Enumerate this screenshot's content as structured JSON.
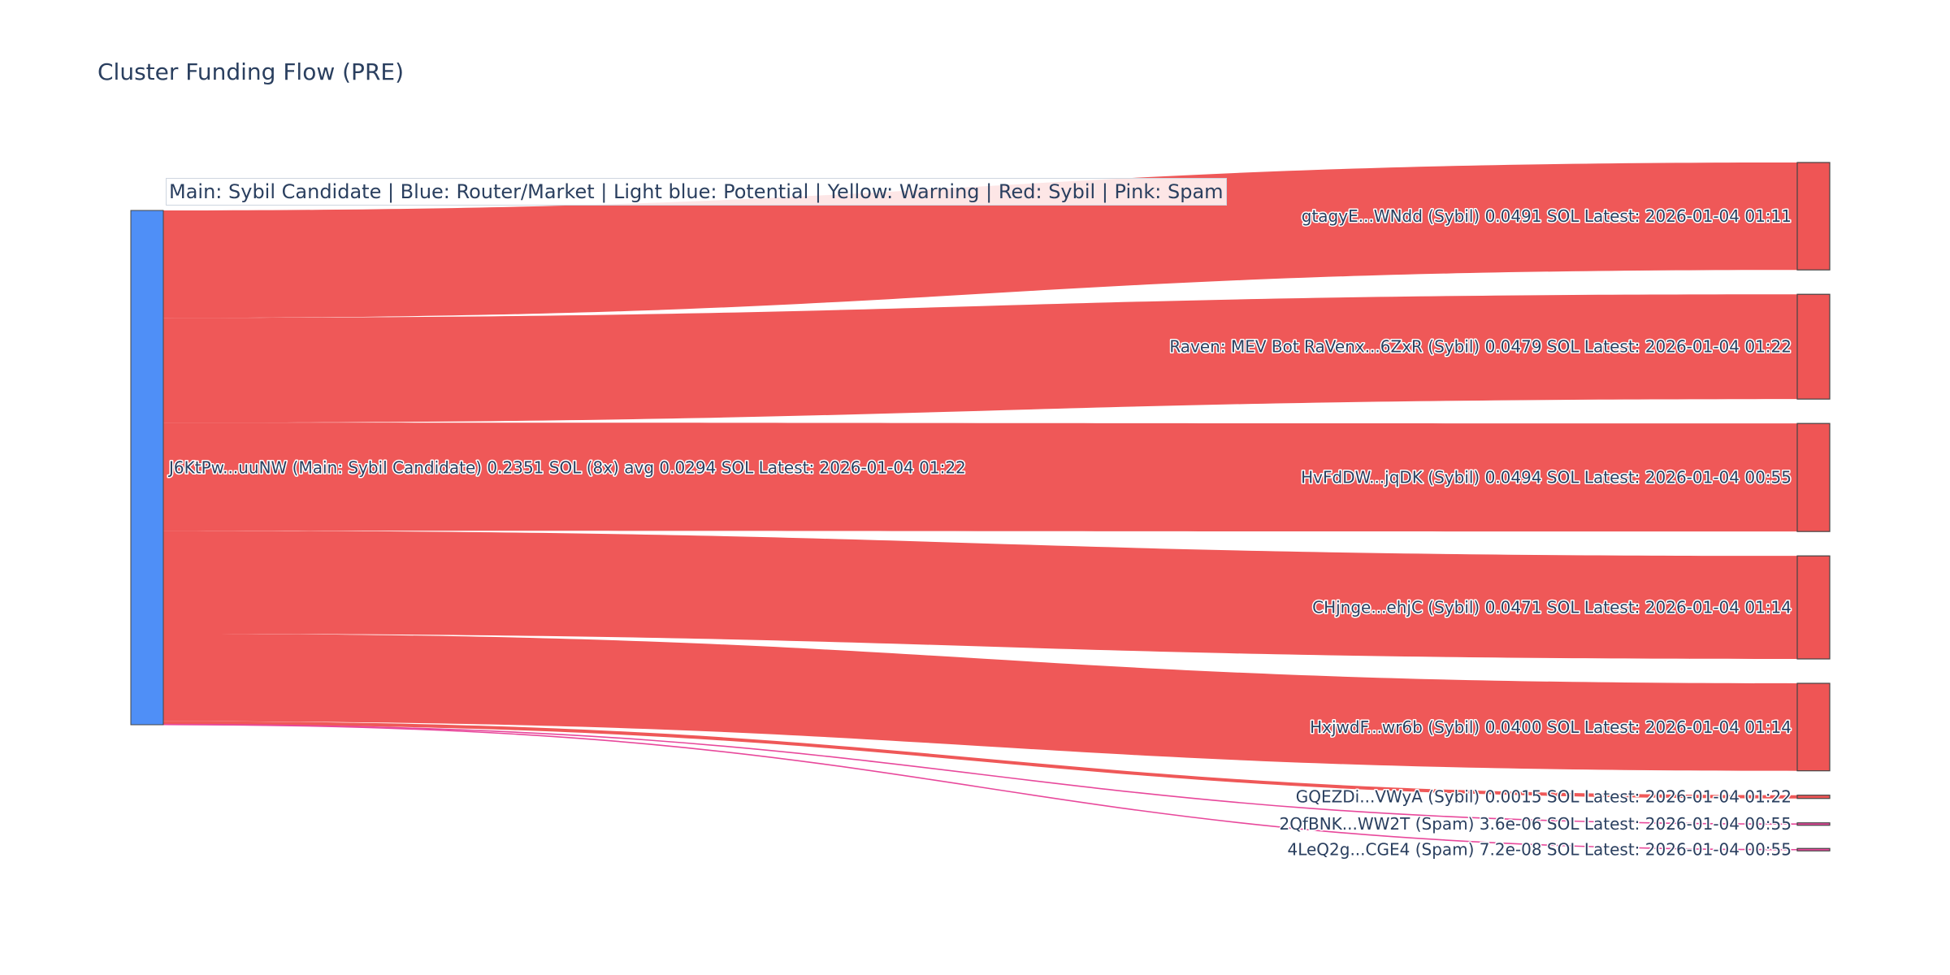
{
  "chart_data": {
    "type": "sankey",
    "title": "Cluster Funding Flow (PRE)",
    "annotation": "Main: Sybil Candidate  |  Blue: Router/Market | Light blue: Potential | Yellow: Warning | Red: Sybil | Pink: Spam",
    "colors": {
      "main_node": "#4f8ff7",
      "sybil": "#ef5555",
      "spam": "#e8489b",
      "sybil_link": "#ef5555",
      "spam_link": "#e8489b"
    },
    "source": {
      "label": "J6KtPw...uuNW (Main: Sybil Candidate) 0.2351 SOL (8x) avg 0.0294 SOL Latest: 2026-01-04 01:22",
      "value": 0.2351
    },
    "targets": [
      {
        "label": "gtagyE...WNdd (Sybil) 0.0491 SOL Latest: 2026-01-04 01:11",
        "value": 0.0491,
        "category": "sybil"
      },
      {
        "label": "Raven: MEV Bot RaVenx...6ZxR (Sybil) 0.0479 SOL Latest: 2026-01-04 01:22",
        "value": 0.0479,
        "category": "sybil"
      },
      {
        "label": "HvFdDW...jqDK (Sybil) 0.0494 SOL Latest: 2026-01-04 00:55",
        "value": 0.0494,
        "category": "sybil"
      },
      {
        "label": "CHjnge...ehjC (Sybil) 0.0471 SOL Latest: 2026-01-04 01:14",
        "value": 0.0471,
        "category": "sybil"
      },
      {
        "label": "HxjwdF...wr6b (Sybil) 0.0400 SOL Latest: 2026-01-04 01:14",
        "value": 0.04,
        "category": "sybil"
      },
      {
        "label": "GQEZDi...VWyA (Sybil) 0.0015 SOL Latest: 2026-01-04 01:22",
        "value": 0.0015,
        "category": "sybil"
      },
      {
        "label": "2QfBNK...WW2T (Spam) 3.6e-06 SOL Latest: 2026-01-04 00:55",
        "value": 3.6e-06,
        "category": "spam"
      },
      {
        "label": "4LeQ2g...CGE4 (Spam) 7.2e-08 SOL Latest: 2026-01-04 00:55",
        "value": 7.2e-08,
        "category": "spam"
      }
    ]
  }
}
